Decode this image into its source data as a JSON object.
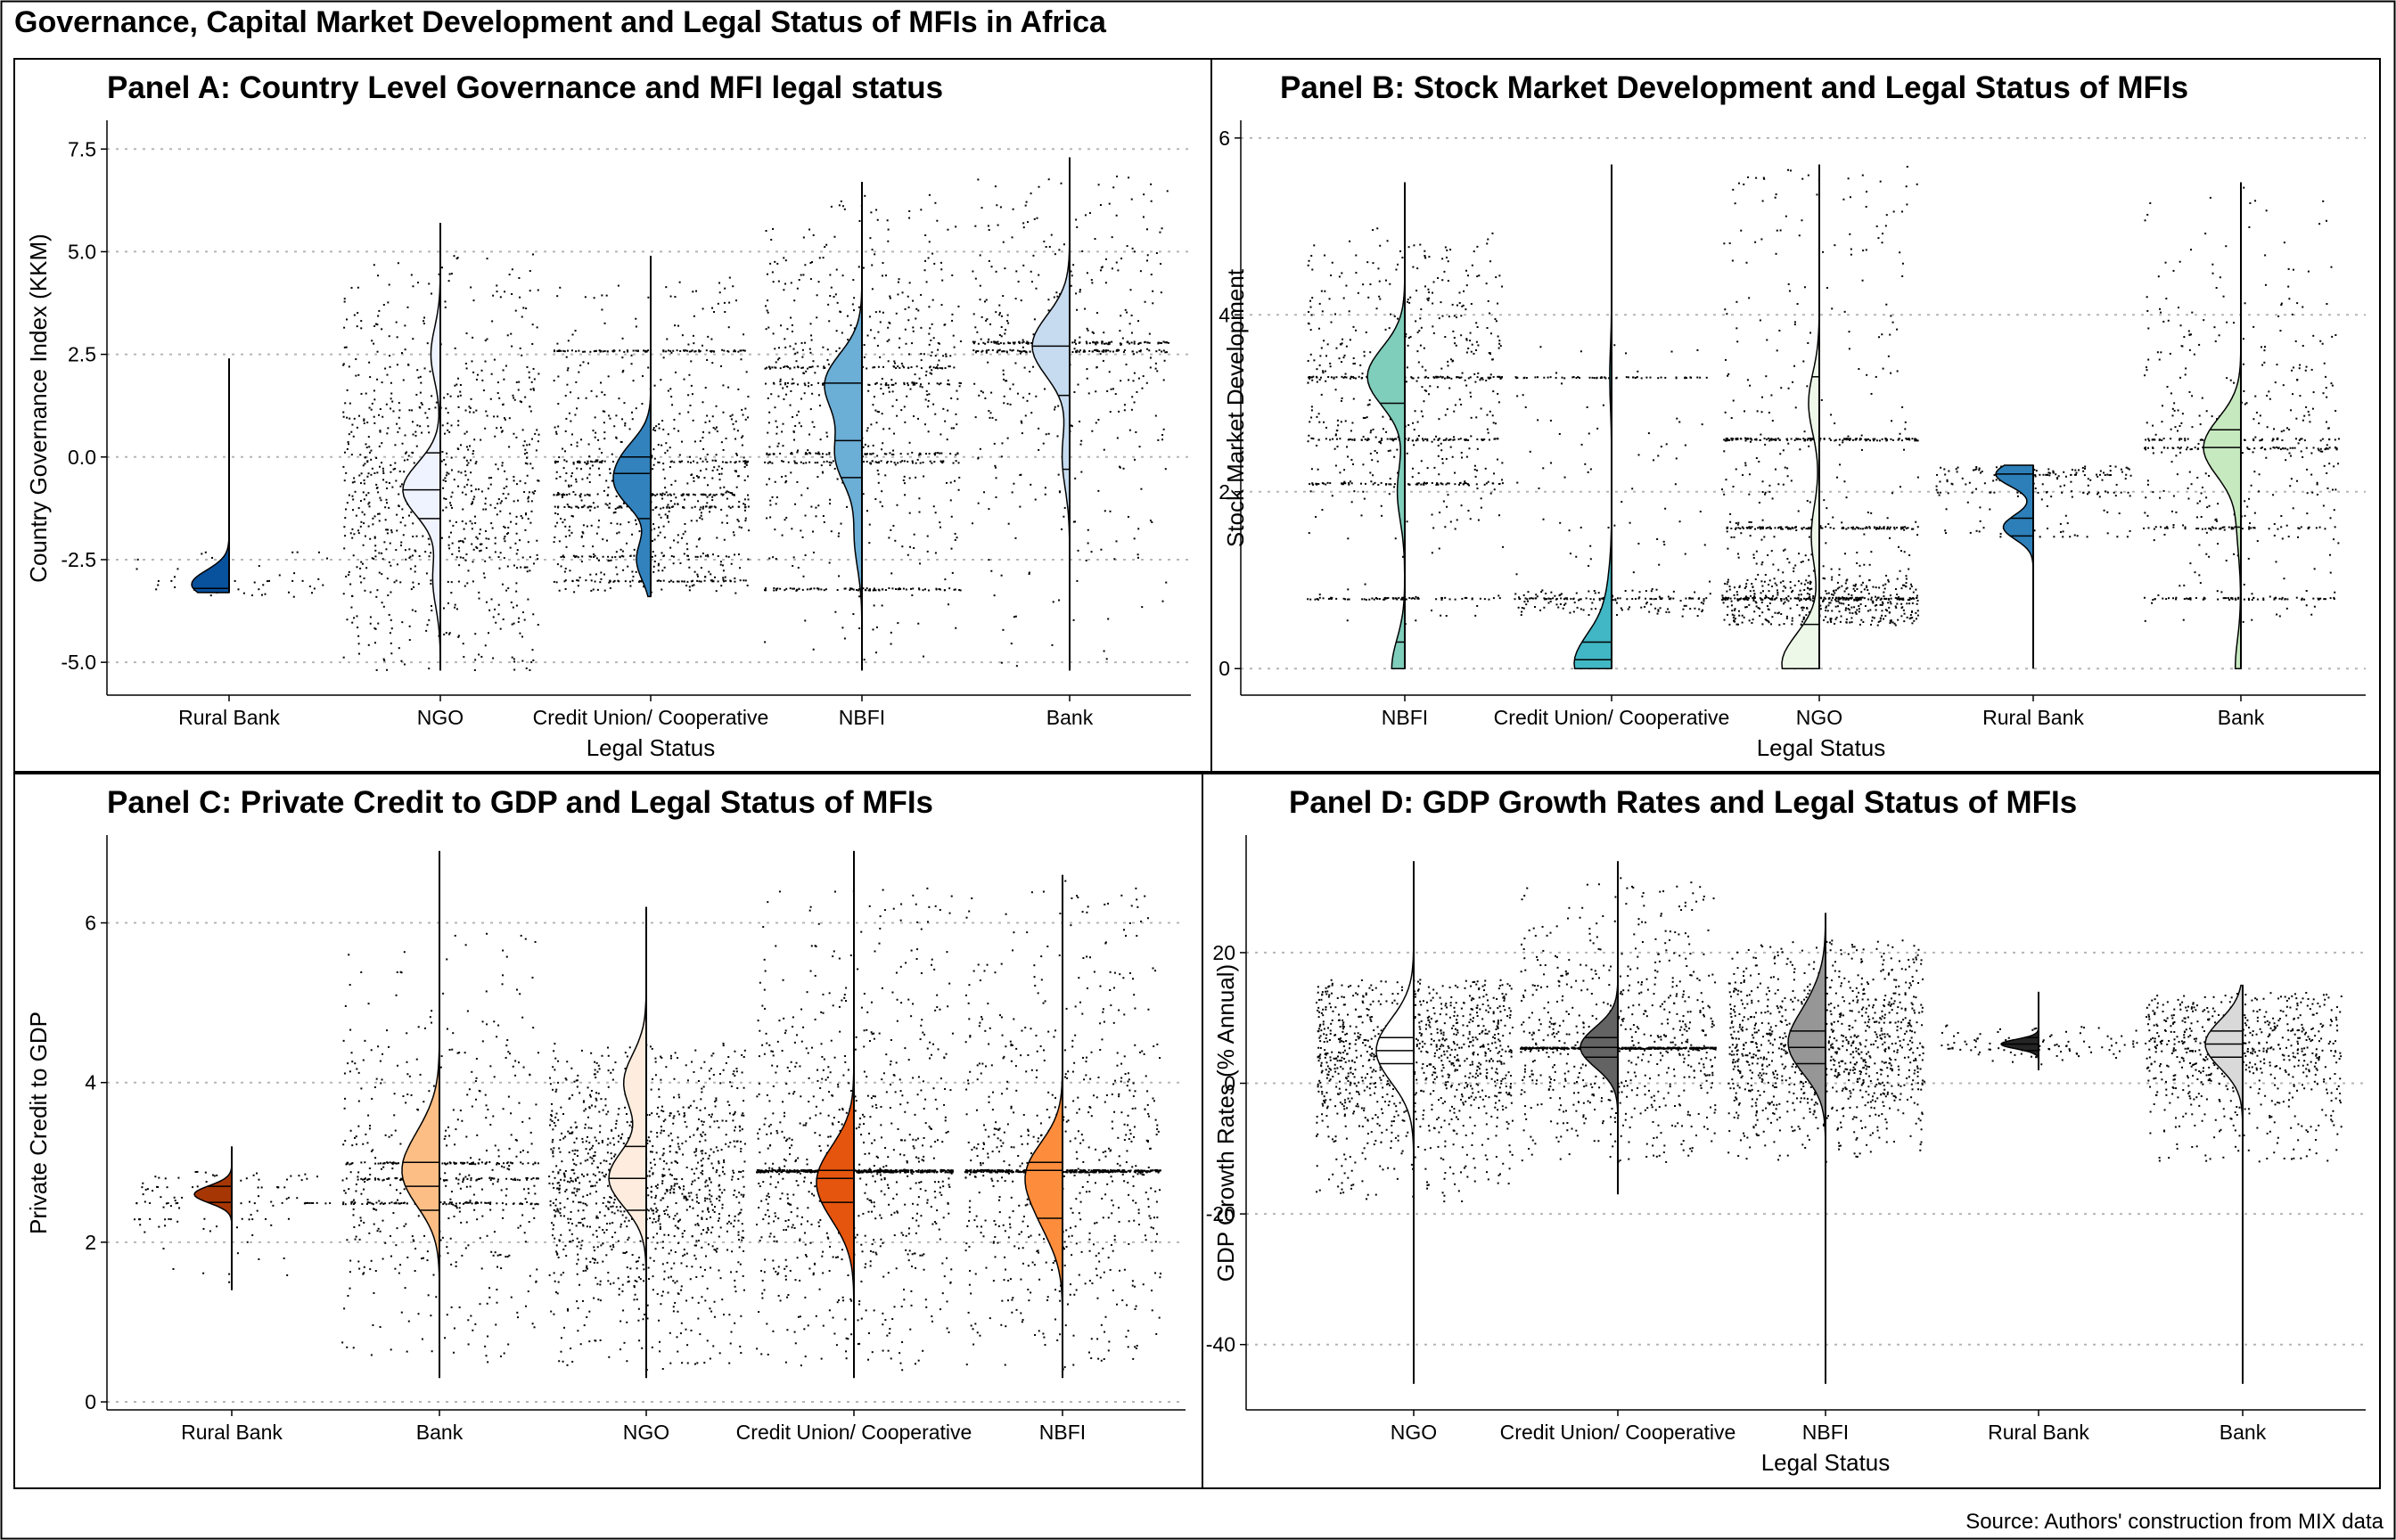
{
  "figure": {
    "title": "Governance, Capital Market Development and Legal Status of MFIs in Africa",
    "source": "Source: Authors' construction from MIX data"
  },
  "chart_data": [
    {
      "type": "violin",
      "panel": "A",
      "title": "Panel A: Country Level Governance and MFI legal status",
      "xlabel": "Legal Status",
      "ylabel": "Country Governance Index (KKM)",
      "ylim": [
        -5.8,
        8.2
      ],
      "yticks": [
        -5.0,
        -2.5,
        0.0,
        2.5,
        5.0,
        7.5
      ],
      "ytick_labels": [
        "-5.0",
        "-2.5",
        "0.0",
        "2.5",
        "5.0",
        "7.5"
      ],
      "grid": "horizontal dotted",
      "categories": [
        "Rural Bank",
        "NGO",
        "Credit Union/ Cooperative",
        "NBFI",
        "Bank"
      ],
      "fill_colors": [
        "#08519c",
        "#eff3ff",
        "#3182bd",
        "#6baed6",
        "#c6dbef"
      ],
      "series": [
        {
          "category": "Rural Bank",
          "min": -3.3,
          "max": 2.4,
          "q1": -3.3,
          "median": -3.2,
          "q3": -2.2,
          "peaks": [
            [
              -3.1,
              1.0
            ]
          ],
          "n_points": 50,
          "clusters": [
            -3.2,
            -3.0,
            -2.3
          ],
          "spread": [
            -3.4,
            -2.2
          ]
        },
        {
          "category": "NGO",
          "min": -5.2,
          "max": 5.7,
          "q1": -1.5,
          "median": -0.8,
          "q3": 0.1,
          "peaks": [
            [
              -0.8,
              1.0
            ],
            [
              2.5,
              0.25
            ],
            [
              -3.0,
              0.2
            ]
          ],
          "n_points": 900,
          "clusters": [],
          "spread": [
            -5.2,
            5.0
          ]
        },
        {
          "category": "Credit Union/ Cooperative",
          "min": -3.4,
          "max": 4.9,
          "q1": -1.5,
          "median": -0.4,
          "q3": 0.0,
          "peaks": [
            [
              -0.8,
              1.0
            ],
            [
              0.0,
              0.8
            ],
            [
              -2.5,
              0.5
            ]
          ],
          "n_points": 1000,
          "clusters": [
            -0.1,
            -0.9,
            -1.2,
            -2.4,
            -3.0,
            2.6
          ],
          "spread": [
            -3.3,
            4.5
          ]
        },
        {
          "category": "NBFI",
          "min": -5.2,
          "max": 6.7,
          "q1": -0.5,
          "median": 0.4,
          "q3": 1.8,
          "peaks": [
            [
              1.8,
              1.0
            ],
            [
              0.0,
              0.7
            ],
            [
              -2.0,
              0.2
            ]
          ],
          "n_points": 900,
          "clusters": [
            1.8,
            2.2,
            0.1,
            -0.1,
            -3.2
          ],
          "spread": [
            -5.0,
            6.5
          ]
        },
        {
          "category": "Bank",
          "min": -5.2,
          "max": 7.3,
          "q1": -0.3,
          "median": 1.5,
          "q3": 2.7,
          "peaks": [
            [
              2.7,
              1.0
            ],
            [
              0.0,
              0.2
            ]
          ],
          "n_points": 600,
          "clusters": [
            2.8,
            2.6
          ],
          "spread": [
            -5.2,
            7.0
          ]
        }
      ]
    },
    {
      "type": "violin",
      "panel": "B",
      "title": "Panel B: Stock Market Development and Legal Status of MFIs",
      "xlabel": "Legal Status",
      "ylabel": "Stock Market Development",
      "ylim": [
        -0.3,
        6.2
      ],
      "yticks": [
        0,
        2,
        4,
        6
      ],
      "ytick_labels": [
        "0",
        "2",
        "4",
        "6"
      ],
      "grid": "horizontal dotted",
      "categories": [
        "NBFI",
        "Credit Union/ Cooperative",
        "NGO",
        "Rural Bank",
        "Bank"
      ],
      "fill_colors": [
        "#7fcdbb",
        "#41b6c4",
        "#edf8e9",
        "#2c7fb8",
        "#c7e9c0"
      ],
      "series": [
        {
          "category": "NBFI",
          "min": 0.0,
          "max": 5.5,
          "q1": 0.3,
          "median": 0.8,
          "q3": 3.0,
          "peaks": [
            [
              3.3,
              1.0
            ],
            [
              0.0,
              0.35
            ],
            [
              2.0,
              0.2
            ]
          ],
          "n_points": 800,
          "clusters": [
            3.3,
            2.1,
            0.8,
            2.6
          ],
          "spread": [
            0.5,
            5.0
          ]
        },
        {
          "category": "Credit Union/ Cooperative",
          "min": 0.0,
          "max": 5.7,
          "q1": 0.0,
          "median": 0.1,
          "q3": 0.3,
          "peaks": [
            [
              0.05,
              1.0
            ],
            [
              0.8,
              0.1
            ],
            [
              3.3,
              0.05
            ]
          ],
          "n_points": 300,
          "clusters": [
            3.3,
            0.8
          ],
          "spread": [
            0.6,
            3.7
          ]
        },
        {
          "category": "NGO",
          "min": 0.0,
          "max": 5.7,
          "q1": 0.0,
          "median": 0.5,
          "q3": 3.3,
          "peaks": [
            [
              0.05,
              0.7
            ],
            [
              3.0,
              0.2
            ],
            [
              1.5,
              0.15
            ]
          ],
          "n_points": 1100,
          "clusters": [
            0.8,
            1.6,
            2.6
          ],
          "spread": [
            0.5,
            5.7
          ]
        },
        {
          "category": "Rural Bank",
          "min": 0.0,
          "max": 2.3,
          "q1": 1.5,
          "median": 1.7,
          "q3": 2.2,
          "peaks": [
            [
              2.2,
              0.25
            ],
            [
              1.6,
              0.2
            ]
          ],
          "n_points": 200,
          "clusters": [
            2.2,
            2.0,
            1.5
          ],
          "spread": [
            1.5,
            2.3
          ]
        },
        {
          "category": "Bank",
          "min": 0.0,
          "max": 5.5,
          "q1": 1.6,
          "median": 2.5,
          "q3": 2.7,
          "peaks": [
            [
              2.5,
              1.0
            ],
            [
              0.0,
              0.15
            ],
            [
              1.6,
              0.1
            ]
          ],
          "n_points": 600,
          "clusters": [
            2.5,
            2.6,
            1.6,
            0.8
          ],
          "spread": [
            0.5,
            5.5
          ]
        }
      ]
    },
    {
      "type": "violin",
      "panel": "C",
      "title": "Panel C: Private Credit to GDP and Legal Status of MFIs",
      "xlabel": "",
      "ylabel": "Private Credit to GDP",
      "ylim": [
        -0.1,
        7.1
      ],
      "yticks": [
        0,
        2,
        4,
        6
      ],
      "ytick_labels": [
        "0",
        "2",
        "4",
        "6"
      ],
      "grid": "horizontal dotted",
      "categories": [
        "Rural Bank",
        "Bank",
        "NGO",
        "Credit Union/ Cooperative",
        "NBFI"
      ],
      "fill_colors": [
        "#a63603",
        "#fdbe85",
        "#feedde",
        "#e6550d",
        "#fd8d3c"
      ],
      "series": [
        {
          "category": "Rural Bank",
          "min": 1.4,
          "max": 3.2,
          "q1": 2.2,
          "median": 2.5,
          "q3": 2.7,
          "peaks": [
            [
              2.6,
              0.55
            ]
          ],
          "n_points": 120,
          "clusters": [
            2.7,
            2.5,
            2.3
          ],
          "spread": [
            1.4,
            2.9
          ]
        },
        {
          "category": "Bank",
          "min": 0.3,
          "max": 6.9,
          "q1": 2.4,
          "median": 2.7,
          "q3": 3.0,
          "peaks": [
            [
              2.8,
              1.0
            ],
            [
              3.3,
              0.4
            ]
          ],
          "n_points": 700,
          "clusters": [
            2.8,
            3.0,
            2.5
          ],
          "spread": [
            0.5,
            6.2
          ]
        },
        {
          "category": "NGO",
          "min": 0.3,
          "max": 6.2,
          "q1": 2.4,
          "median": 2.8,
          "q3": 3.2,
          "peaks": [
            [
              2.8,
              1.0
            ],
            [
              4.0,
              0.6
            ]
          ],
          "n_points": 1200,
          "clusters": [],
          "spread": [
            0.4,
            4.5
          ]
        },
        {
          "category": "Credit Union/ Cooperative",
          "min": 0.3,
          "max": 6.9,
          "q1": 2.5,
          "median": 2.8,
          "q3": 2.9,
          "peaks": [
            [
              2.9,
              1.0
            ],
            [
              2.5,
              0.7
            ]
          ],
          "n_points": 1200,
          "clusters": [
            2.9
          ],
          "spread": [
            0.4,
            6.6
          ]
        },
        {
          "category": "NBFI",
          "min": 0.3,
          "max": 6.6,
          "q1": 2.3,
          "median": 2.9,
          "q3": 3.0,
          "peaks": [
            [
              2.9,
              1.0
            ],
            [
              2.3,
              0.5
            ]
          ],
          "n_points": 1100,
          "clusters": [
            2.9
          ],
          "spread": [
            0.4,
            6.6
          ]
        }
      ]
    },
    {
      "type": "violin",
      "panel": "D",
      "title": "Panel D: GDP Growth Rates and Legal Status of MFIs",
      "xlabel": "Legal Status",
      "ylabel": "GDP Growth Rates (% Annual)",
      "ylim": [
        -50,
        38
      ],
      "yticks": [
        -40,
        -20,
        0,
        20
      ],
      "ytick_labels": [
        "-40",
        "-20",
        "0",
        "20"
      ],
      "grid": "horizontal dotted",
      "categories": [
        "NGO",
        "Credit Union/ Cooperative",
        "NBFI",
        "Rural Bank",
        "Bank"
      ],
      "fill_colors": [
        "#ffffff",
        "#636363",
        "#969696",
        "#252525",
        "#d9d9d9"
      ],
      "series": [
        {
          "category": "NGO",
          "min": -46,
          "max": 34,
          "q1": 3,
          "median": 5,
          "q3": 7,
          "peaks": [
            [
              5,
              1.0
            ]
          ],
          "n_points": 1100,
          "clusters": [],
          "spread": [
            -18,
            16
          ]
        },
        {
          "category": "Credit Union/ Cooperative",
          "min": -17,
          "max": 34,
          "q1": 4,
          "median": 5.5,
          "q3": 7,
          "peaks": [
            [
              5.5,
              1.0
            ]
          ],
          "n_points": 1100,
          "clusters": [
            5.5
          ],
          "spread": [
            -12,
            32
          ]
        },
        {
          "category": "NBFI",
          "min": -46,
          "max": 26,
          "q1": 3,
          "median": 5.5,
          "q3": 8,
          "peaks": [
            [
              5.5,
              1.0
            ],
            [
              12,
              0.3
            ]
          ],
          "n_points": 1100,
          "clusters": [],
          "spread": [
            -12,
            22
          ]
        },
        {
          "category": "Rural Bank",
          "min": 2,
          "max": 14,
          "q1": 5,
          "median": 6,
          "q3": 7,
          "peaks": [
            [
              6,
              0.35
            ]
          ],
          "n_points": 100,
          "clusters": [],
          "spread": [
            3,
            9
          ]
        },
        {
          "category": "Bank",
          "min": -46,
          "max": 15,
          "q1": 4,
          "median": 6,
          "q3": 8,
          "peaks": [
            [
              6,
              1.0
            ]
          ],
          "n_points": 700,
          "clusters": [],
          "spread": [
            -12,
            14
          ]
        }
      ]
    }
  ]
}
